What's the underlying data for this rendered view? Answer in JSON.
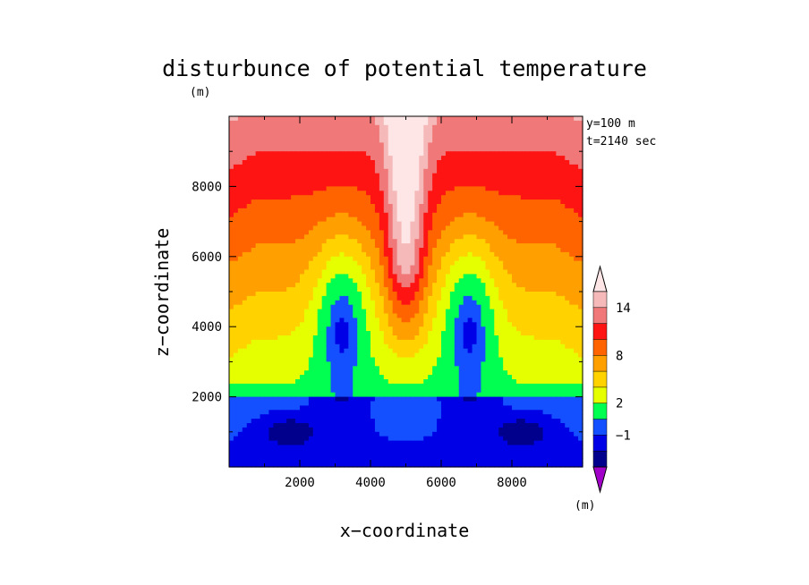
{
  "chart_data": {
    "type": "heatmap",
    "title": "disturbunce of potential temperature",
    "title_unit": "(m)",
    "xlabel": "x−coordinate",
    "ylabel": "z−coordinate",
    "xlim": [
      0,
      10000
    ],
    "ylim": [
      0,
      10000
    ],
    "x_ticks": [
      2000,
      4000,
      6000,
      8000
    ],
    "y_ticks": [
      2000,
      4000,
      6000,
      8000
    ],
    "x_tick_labels": [
      "2000",
      "4000",
      "6000",
      "8000"
    ],
    "y_tick_labels": [
      "2000",
      "4000",
      "6000",
      "8000"
    ],
    "annotations": [
      "y=100 m",
      "t=2140 sec"
    ],
    "colorbar": {
      "position": "right",
      "unit": "(m)",
      "levels": [
        -3,
        -2,
        -1,
        0,
        2,
        4,
        6,
        8,
        10,
        12,
        14,
        16
      ],
      "labels": [
        {
          "value": -1,
          "text": "−1"
        },
        {
          "value": 2,
          "text": "2"
        },
        {
          "value": 8,
          "text": "8"
        },
        {
          "value": 14,
          "text": "14"
        }
      ],
      "colors": [
        "#a000c8",
        "#00008c",
        "#0000e6",
        "#1450ff",
        "#00ff50",
        "#e6ff00",
        "#ffd200",
        "#ffa000",
        "#ff6400",
        "#ff1414",
        "#f07878",
        "#f5b9b9",
        "#ffe6e6"
      ],
      "extend": "both"
    },
    "grid": false,
    "description_fields": {
      "surface_layer_top_z": 2000,
      "warm_plume_center_x": 5000,
      "plume_red_tip_z": 5500,
      "boundary_left_x": 3000,
      "boundary_right_x": 7000
    }
  }
}
